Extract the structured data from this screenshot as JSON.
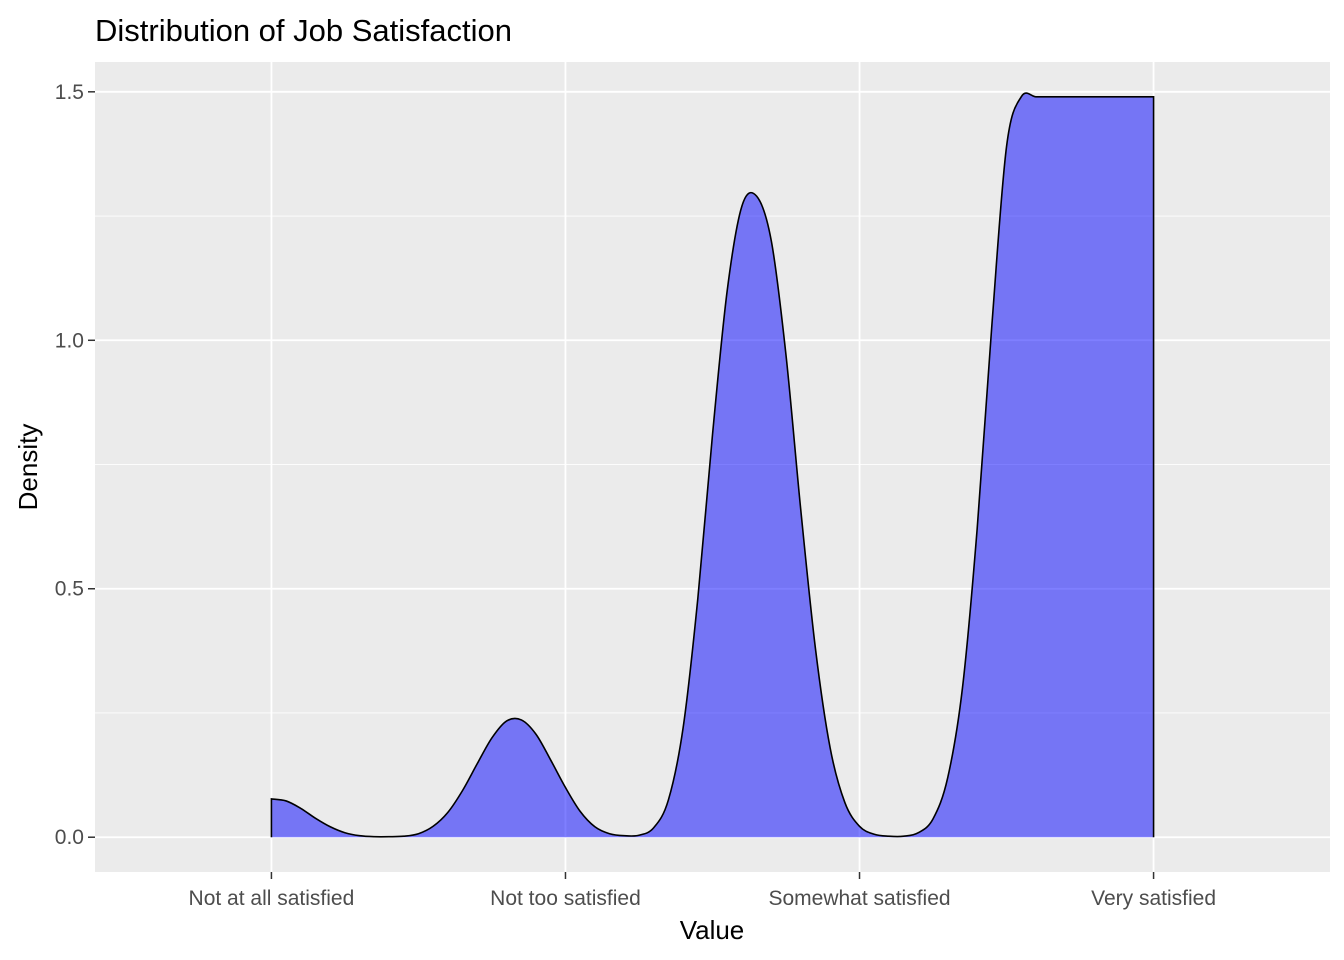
{
  "chart_data": {
    "type": "area",
    "title": "Distribution of Job Satisfaction",
    "xlabel": "Value",
    "ylabel": "Density",
    "x_categories": [
      "Not at all satisfied",
      "Not too satisfied",
      "Somewhat satisfied",
      "Very satisfied"
    ],
    "x_category_positions": [
      1,
      2,
      3,
      4
    ],
    "xlim": [
      0.4,
      4.6
    ],
    "ylim": [
      -0.07,
      1.56
    ],
    "y_ticks": [
      0.0,
      0.5,
      1.0,
      1.5
    ],
    "y_tick_labels": [
      "0.0",
      "0.5",
      "1.0",
      "1.5"
    ],
    "grid": true,
    "panel_background": "#EBEBEB",
    "grid_color": "#FFFFFF",
    "fill_color": "#0000FF",
    "fill_opacity": 0.5,
    "line_color": "#000000",
    "series": [
      {
        "x": [
          1.0,
          1.05,
          1.1,
          1.15,
          1.2,
          1.25,
          1.3,
          1.35,
          1.4,
          1.45,
          1.5,
          1.55,
          1.6,
          1.65,
          1.7,
          1.75,
          1.8,
          1.85,
          1.9,
          1.95,
          2.0,
          2.05,
          2.1,
          2.15,
          2.2,
          2.25,
          2.3,
          2.35,
          2.4,
          2.45,
          2.5,
          2.55,
          2.6,
          2.65,
          2.7,
          2.75,
          2.8,
          2.85,
          2.9,
          2.95,
          3.0,
          3.05,
          3.1,
          3.15,
          3.2,
          3.25,
          3.3,
          3.35,
          3.4,
          3.45,
          3.5,
          3.55,
          3.6,
          3.65,
          3.7,
          3.75,
          3.8,
          3.85,
          3.9,
          3.95,
          4.0
        ],
        "y": [
          0.077,
          0.073,
          0.058,
          0.038,
          0.021,
          0.009,
          0.003,
          0.001,
          0.001,
          0.002,
          0.007,
          0.022,
          0.05,
          0.094,
          0.148,
          0.2,
          0.234,
          0.236,
          0.207,
          0.155,
          0.1,
          0.052,
          0.021,
          0.007,
          0.003,
          0.004,
          0.019,
          0.075,
          0.22,
          0.48,
          0.81,
          1.1,
          1.27,
          1.29,
          1.2,
          0.97,
          0.66,
          0.38,
          0.18,
          0.07,
          0.022,
          0.006,
          0.002,
          0.002,
          0.009,
          0.037,
          0.12,
          0.3,
          0.62,
          1.03,
          1.39,
          1.49,
          1.49,
          1.49,
          1.49,
          1.49,
          1.49,
          1.49,
          1.49,
          1.49,
          1.49
        ]
      }
    ]
  }
}
